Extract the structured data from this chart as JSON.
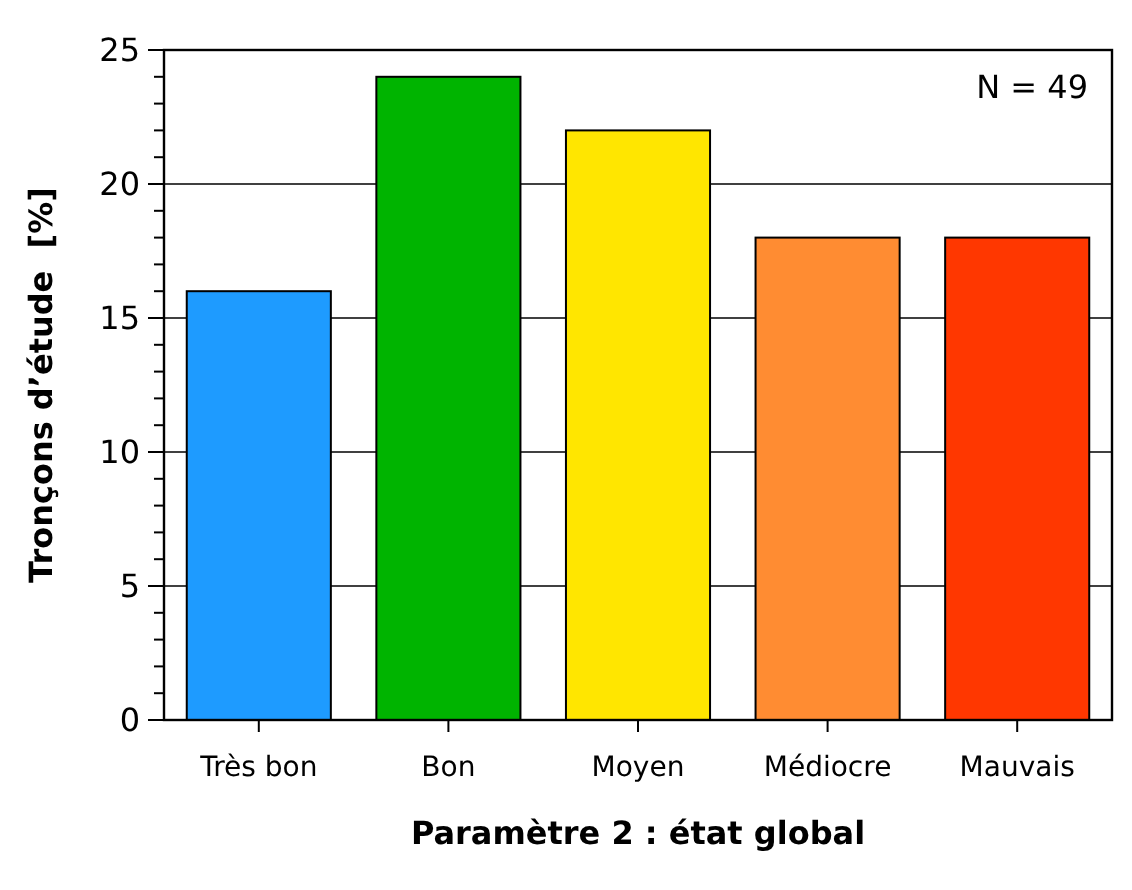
{
  "chart_data": {
    "type": "bar",
    "xlabel": "Paramètre 2 : état global",
    "ylabel": "Tronçons d’étude  [%]",
    "categories": [
      "Très bon",
      "Bon",
      "Moyen",
      "Médiocre",
      "Mauvais"
    ],
    "values": [
      16,
      24,
      22,
      18,
      18
    ],
    "colors": [
      "#1e9bff",
      "#00b400",
      "#ffe600",
      "#ff8c32",
      "#ff3700"
    ],
    "ylim": [
      0,
      25
    ],
    "yticks": [
      0,
      {
        "value": 1,
        "label": null
      },
      {
        "value": 2,
        "label": null
      },
      {
        "value": 3,
        "label": null
      },
      {
        "value": 4,
        "label": null
      },
      5,
      {
        "value": 6,
        "label": null
      },
      {
        "value": 7,
        "label": null
      },
      {
        "value": 8,
        "label": null
      },
      {
        "value": 9,
        "label": null
      },
      10,
      {
        "value": 11,
        "label": null
      },
      {
        "value": 12,
        "label": null
      },
      {
        "value": 13,
        "label": null
      },
      {
        "value": 14,
        "label": null
      },
      15,
      {
        "value": 16,
        "label": null
      },
      {
        "value": 17,
        "label": null
      },
      {
        "value": 18,
        "label": null
      },
      {
        "value": 19,
        "label": null
      },
      20,
      {
        "value": 21,
        "label": null
      },
      {
        "value": 22,
        "label": null
      },
      {
        "value": 23,
        "label": null
      },
      {
        "value": 24,
        "label": null
      },
      25
    ],
    "grid": "y",
    "annotations": [
      "N = 49"
    ]
  }
}
